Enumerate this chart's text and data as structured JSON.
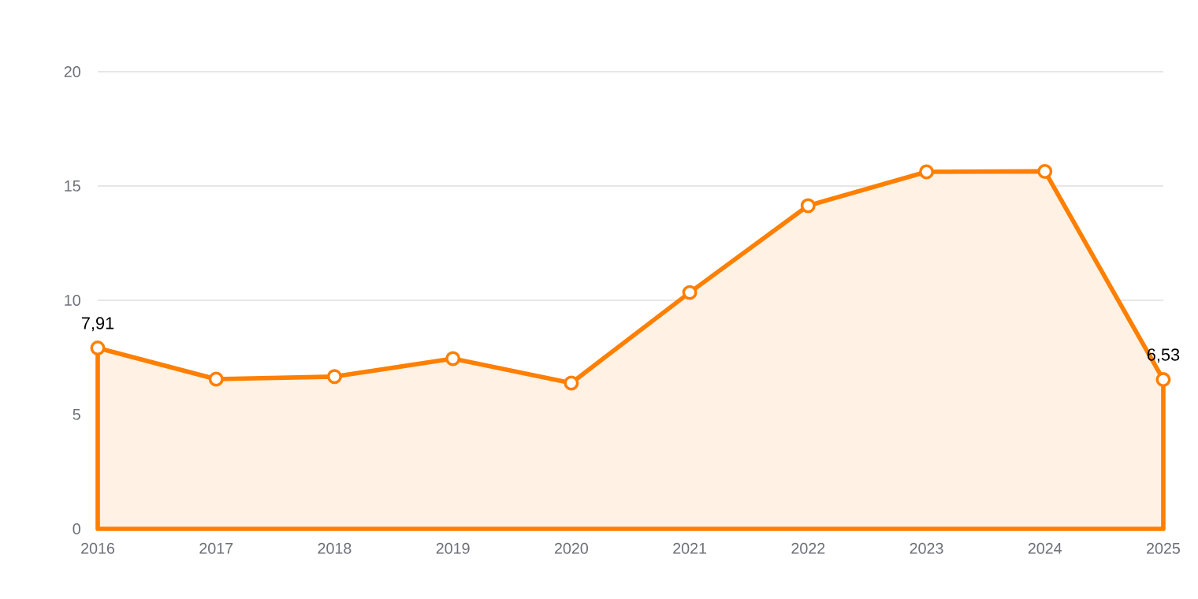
{
  "chart_data": {
    "type": "area",
    "categories": [
      "2016",
      "2017",
      "2018",
      "2019",
      "2020",
      "2021",
      "2022",
      "2023",
      "2024",
      "2025"
    ],
    "series": [
      {
        "color": "#ff7f00",
        "values": [
          7.91,
          6.55,
          6.66,
          7.45,
          6.38,
          10.34,
          14.14,
          15.62,
          15.64,
          6.53
        ],
        "value_labels": [
          "7,91",
          null,
          null,
          null,
          null,
          null,
          null,
          null,
          null,
          "6,53"
        ]
      }
    ],
    "ylim": [
      0,
      20
    ],
    "yticks": [
      0,
      5,
      10,
      15,
      20
    ],
    "grid": "y",
    "marker": "circle",
    "line_style": "solid"
  }
}
